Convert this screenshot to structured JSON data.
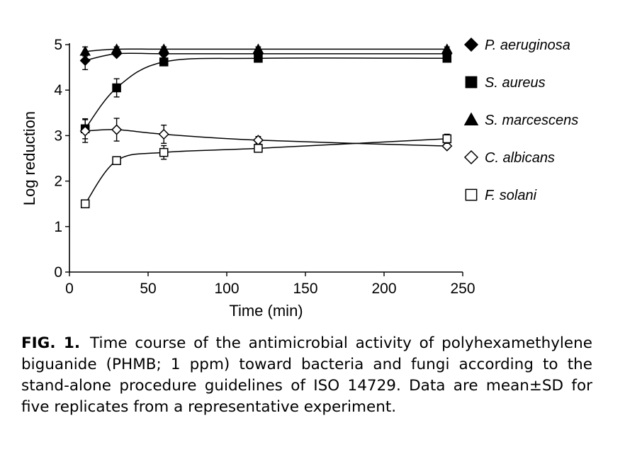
{
  "chart_data": {
    "type": "line",
    "xlabel": "Time (min)",
    "ylabel": "Log reduction",
    "xlim": [
      0,
      250
    ],
    "ylim": [
      0,
      5
    ],
    "xticks": [
      0,
      50,
      100,
      150,
      200,
      250
    ],
    "yticks": [
      0,
      1,
      2,
      3,
      4,
      5
    ],
    "x": [
      10,
      30,
      60,
      120,
      240
    ],
    "series": [
      {
        "name": "P. aeruginosa",
        "marker": "diamond-filled",
        "values": [
          4.65,
          4.8,
          4.8,
          4.8,
          4.8
        ],
        "sd": [
          0.2,
          0.05,
          0.05,
          0.05,
          0.05
        ]
      },
      {
        "name": "S. aureus",
        "marker": "square-filled",
        "values": [
          3.15,
          4.05,
          4.62,
          4.7,
          4.7
        ],
        "sd": [
          0.22,
          0.2,
          0.08,
          0.05,
          0.05
        ]
      },
      {
        "name": "S. marcescens",
        "marker": "triangle-filled",
        "values": [
          4.85,
          4.9,
          4.9,
          4.9,
          4.9
        ],
        "sd": [
          0.1,
          0.05,
          0.05,
          0.05,
          0.05
        ]
      },
      {
        "name": "C. albicans",
        "marker": "diamond-open",
        "values": [
          3.1,
          3.13,
          3.03,
          2.9,
          2.77
        ],
        "sd": [
          0.25,
          0.25,
          0.2,
          0.08,
          0.05
        ]
      },
      {
        "name": "F. solani",
        "marker": "square-open",
        "values": [
          1.5,
          2.45,
          2.63,
          2.72,
          2.93
        ],
        "sd": [
          0.05,
          0.08,
          0.15,
          0.08,
          0.1
        ]
      }
    ]
  },
  "caption": {
    "label": "FIG. 1.",
    "text": "Time course of the antimicrobial activity of polyhexamethylene biguanide (PHMB; 1 ppm) toward bacteria and fungi according to the stand-alone procedure guidelines of ISO 14729. Data are mean±SD for five replicates from a representative experiment."
  }
}
